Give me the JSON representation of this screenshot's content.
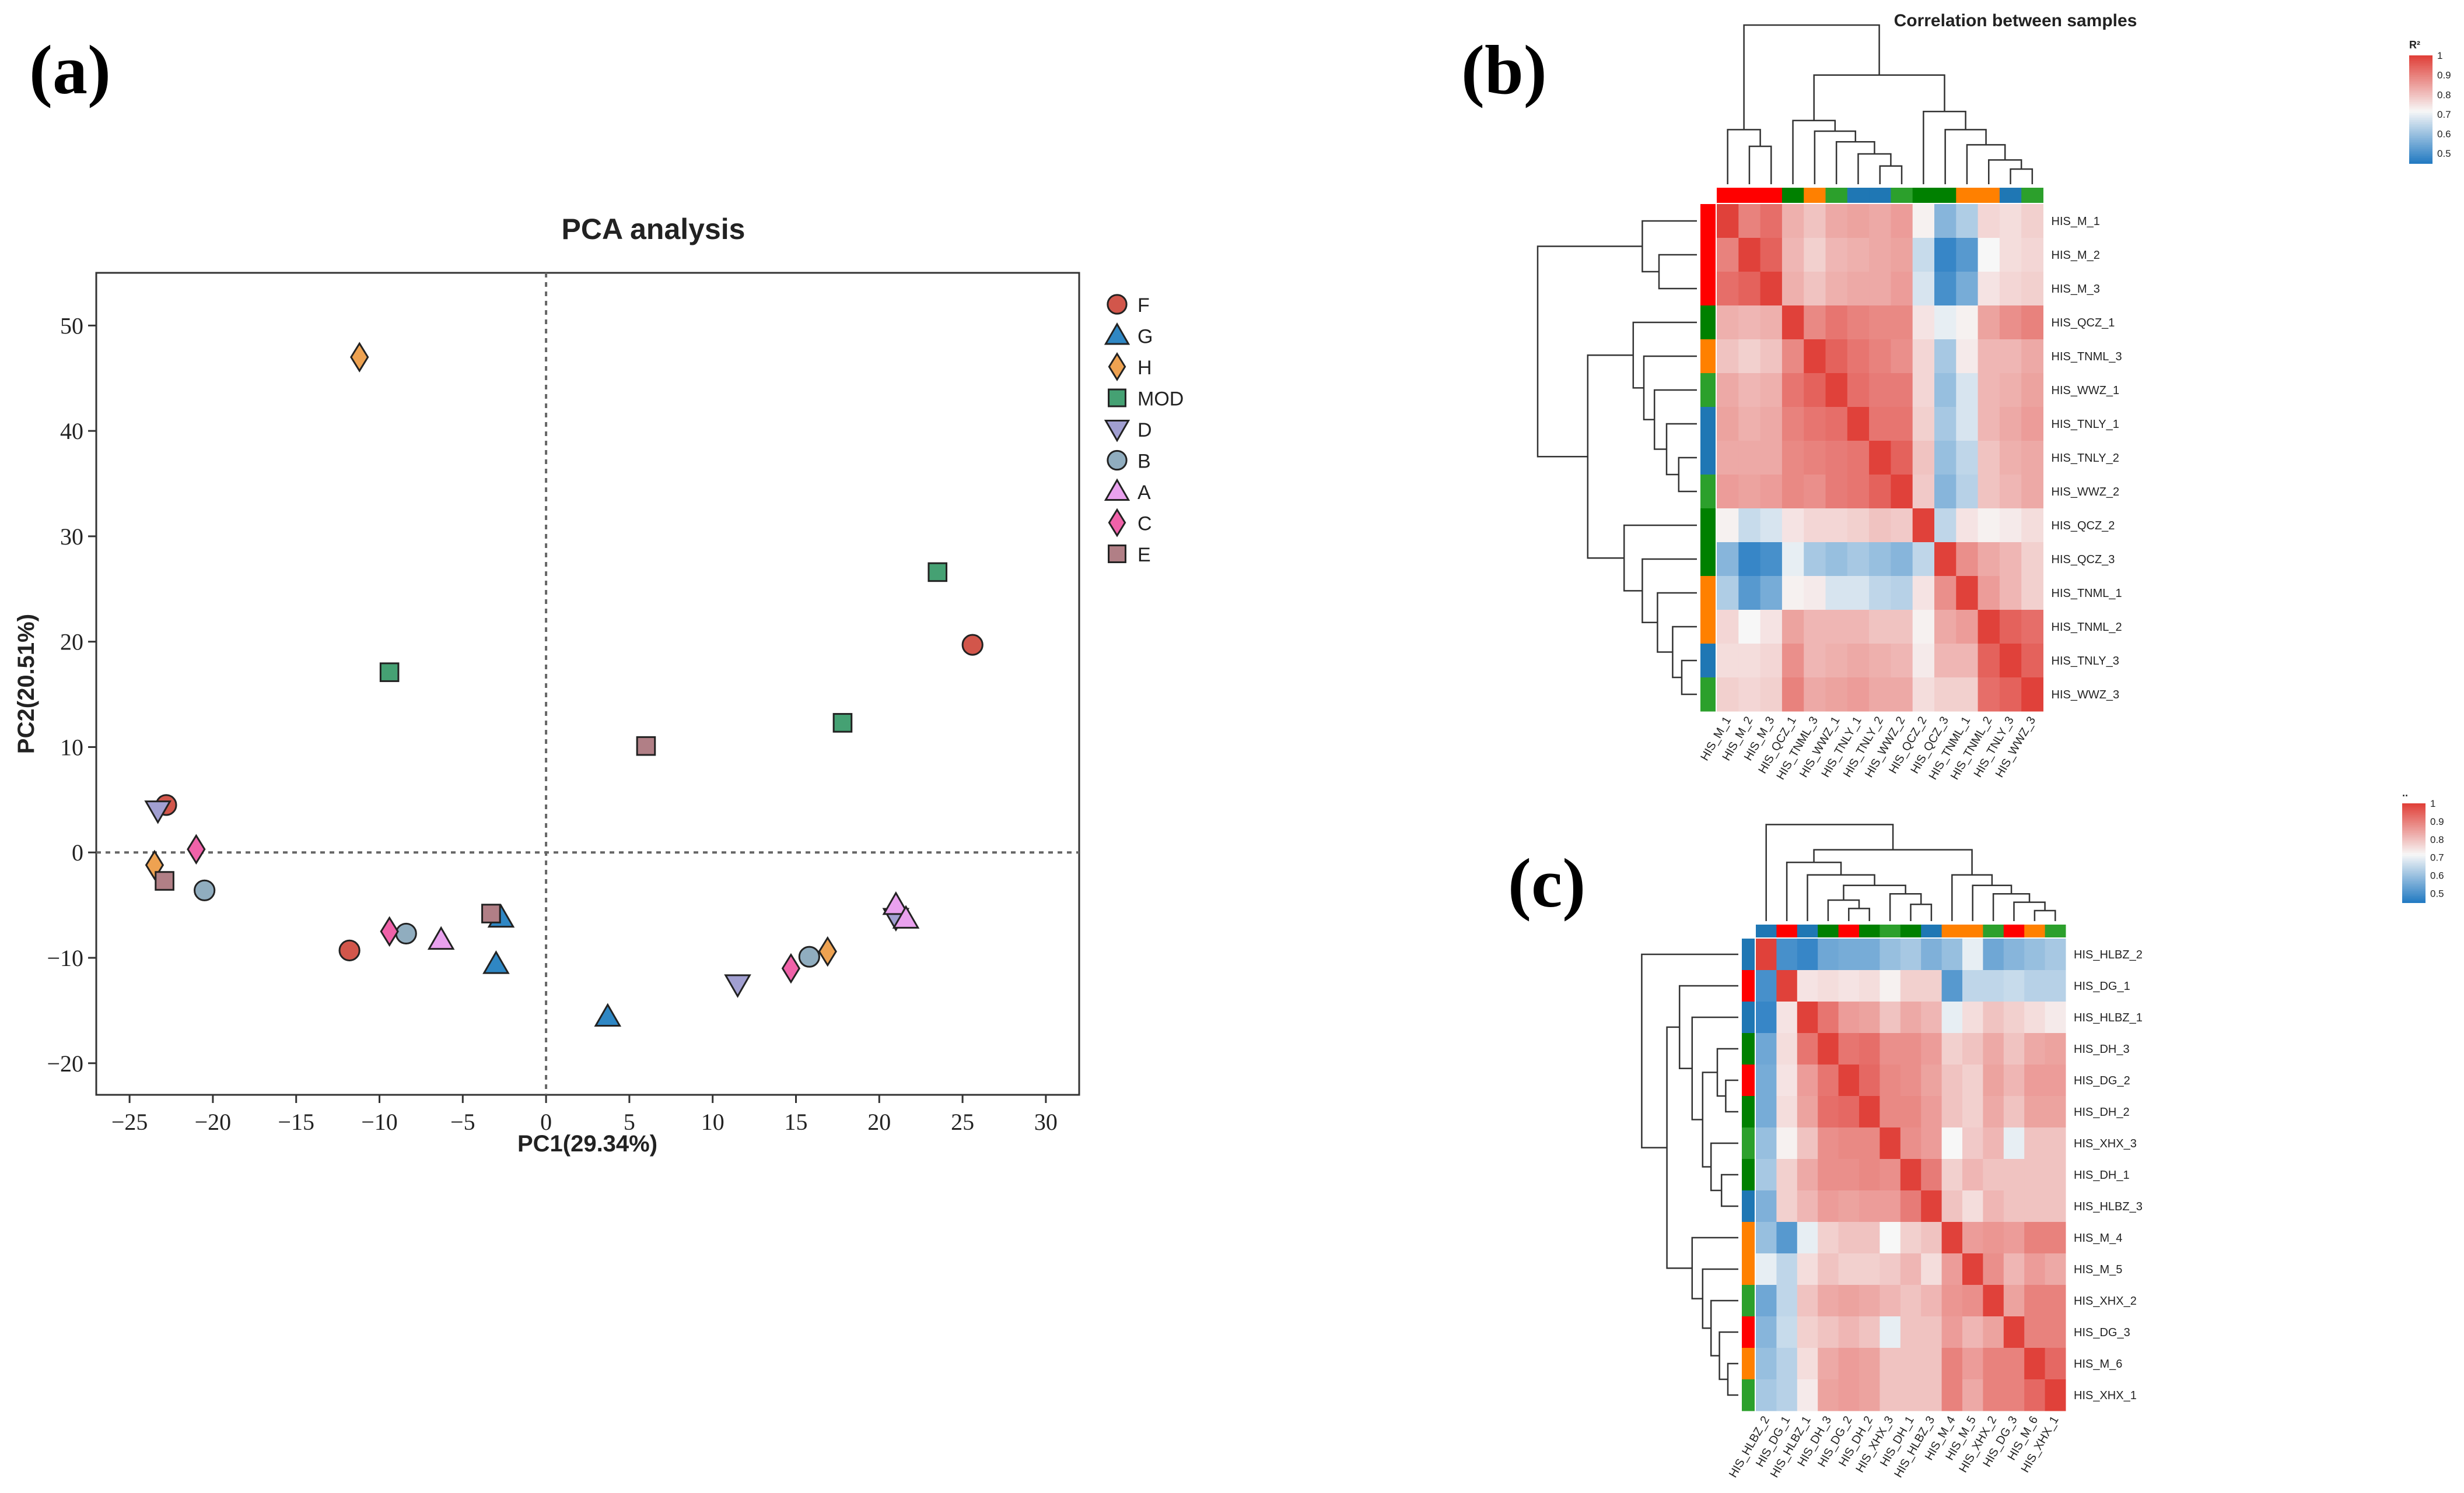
{
  "panel_labels": {
    "a": "(a)",
    "b": "(b)",
    "c": "(c)"
  },
  "colors": {
    "F": "#d2564b",
    "G": "#2f87c4",
    "H": "#eea251",
    "MOD": "#45a173",
    "D": "#a19fd1",
    "B": "#90adbf",
    "A": "#e9a1ee",
    "C": "#f062a9",
    "E": "#b17f86",
    "heat_hi": "#e0413a",
    "heat_mid": "#f7f7f7",
    "heat_lo": "#1f78c1",
    "grp_red": "#ff0000",
    "grp_green": "#008000",
    "grp_orange": "#ff8000",
    "grp_blue": "#1f77b4",
    "grp_lgreen": "#2ca02c"
  },
  "chart_data": [
    {
      "type": "scatter",
      "title": "PCA analysis",
      "xlabel": "PC1(29.34%)",
      "ylabel": "PC2(20.51%)",
      "xlim": [
        -27,
        32
      ],
      "ylim": [
        -23,
        55
      ],
      "xticks": [
        -25,
        -20,
        -15,
        -10,
        -5,
        0,
        5,
        10,
        15,
        20,
        25,
        30
      ],
      "yticks": [
        -20,
        -10,
        0,
        10,
        20,
        30,
        40,
        50
      ],
      "reference_lines": {
        "x": 0,
        "y": 0,
        "style": "dotted"
      },
      "legend_position": "outside-right",
      "series": [
        {
          "name": "F",
          "marker": "circle",
          "points": [
            [
              -22.8,
              4.5
            ],
            [
              -11.8,
              -9.3
            ],
            [
              25.6,
              19.7
            ]
          ]
        },
        {
          "name": "G",
          "marker": "triangle-up",
          "points": [
            [
              -2.7,
              -6.2
            ],
            [
              -3.0,
              -10.6
            ],
            [
              3.7,
              -15.6
            ]
          ]
        },
        {
          "name": "H",
          "marker": "diamond",
          "points": [
            [
              -11.2,
              47.0
            ],
            [
              -23.5,
              -1.2
            ],
            [
              16.9,
              -9.4
            ]
          ]
        },
        {
          "name": "MOD",
          "marker": "square",
          "points": [
            [
              -9.4,
              17.1
            ],
            [
              23.5,
              26.6
            ],
            [
              17.8,
              12.3
            ]
          ]
        },
        {
          "name": "D",
          "marker": "triangle-down",
          "points": [
            [
              -23.3,
              4.0
            ],
            [
              11.5,
              -12.5
            ],
            [
              21.0,
              -6.2
            ]
          ]
        },
        {
          "name": "B",
          "marker": "circle",
          "points": [
            [
              -20.5,
              -3.6
            ],
            [
              -8.4,
              -7.7
            ],
            [
              15.8,
              -9.9
            ]
          ]
        },
        {
          "name": "A",
          "marker": "triangle-up",
          "points": [
            [
              -6.3,
              -8.3
            ],
            [
              21.0,
              -5.0
            ],
            [
              21.6,
              -6.3
            ]
          ]
        },
        {
          "name": "C",
          "marker": "diamond",
          "points": [
            [
              -21.0,
              0.3
            ],
            [
              -9.4,
              -7.5
            ],
            [
              14.7,
              -11.0
            ]
          ]
        },
        {
          "name": "E",
          "marker": "square",
          "points": [
            [
              -22.9,
              -2.7
            ],
            [
              -3.3,
              -5.8
            ],
            [
              6.0,
              10.1
            ]
          ]
        }
      ]
    },
    {
      "type": "heatmap",
      "title": "Correlation between samples",
      "colorbar_label": "R²",
      "colorbar_ticks": [
        "1",
        "0.9",
        "0.8",
        "0.7",
        "0.6",
        "0.5"
      ],
      "value_range": [
        0.45,
        1.0
      ],
      "rows": [
        "HIS_M_1",
        "HIS_M_2",
        "HIS_M_3",
        "HIS_QCZ_1",
        "HIS_TNML_3",
        "HIS_WWZ_1",
        "HIS_TNLY_1",
        "HIS_TNLY_2",
        "HIS_WWZ_2",
        "HIS_QCZ_2",
        "HIS_QCZ_3",
        "HIS_TNML_1",
        "HIS_TNML_2",
        "HIS_TNLY_3",
        "HIS_WWZ_3"
      ],
      "columns": [
        "HIS_M_1",
        "HIS_M_2",
        "HIS_M_3",
        "HIS_QCZ_1",
        "HIS_TNML_3",
        "HIS_WWZ_1",
        "HIS_TNLY_1",
        "HIS_TNLY_2",
        "HIS_WWZ_2",
        "HIS_QCZ_2",
        "HIS_QCZ_3",
        "HIS_TNML_1",
        "HIS_TNML_2",
        "HIS_TNLY_3",
        "HIS_WWZ_3"
      ],
      "group_colors": [
        "grp_red",
        "grp_red",
        "grp_red",
        "grp_green",
        "grp_orange",
        "grp_lgreen",
        "grp_blue",
        "grp_blue",
        "grp_lgreen",
        "grp_green",
        "grp_green",
        "grp_orange",
        "grp_orange",
        "grp_blue",
        "grp_lgreen"
      ],
      "values": [
        [
          1.0,
          0.9,
          0.93,
          0.83,
          0.8,
          0.84,
          0.85,
          0.84,
          0.86,
          0.73,
          0.58,
          0.63,
          0.77,
          0.76,
          0.78
        ],
        [
          0.9,
          1.0,
          0.95,
          0.82,
          0.78,
          0.82,
          0.83,
          0.84,
          0.85,
          0.66,
          0.48,
          0.52,
          0.72,
          0.76,
          0.77
        ],
        [
          0.93,
          0.95,
          1.0,
          0.83,
          0.8,
          0.83,
          0.84,
          0.84,
          0.86,
          0.68,
          0.5,
          0.56,
          0.75,
          0.77,
          0.78
        ],
        [
          0.83,
          0.82,
          0.83,
          1.0,
          0.89,
          0.92,
          0.9,
          0.89,
          0.89,
          0.75,
          0.7,
          0.73,
          0.85,
          0.88,
          0.9
        ],
        [
          0.8,
          0.78,
          0.8,
          0.89,
          1.0,
          0.95,
          0.92,
          0.9,
          0.88,
          0.77,
          0.62,
          0.74,
          0.82,
          0.82,
          0.84
        ],
        [
          0.84,
          0.82,
          0.83,
          0.92,
          0.95,
          1.0,
          0.93,
          0.91,
          0.91,
          0.77,
          0.6,
          0.68,
          0.82,
          0.83,
          0.85
        ],
        [
          0.85,
          0.83,
          0.84,
          0.9,
          0.92,
          0.93,
          1.0,
          0.92,
          0.92,
          0.78,
          0.62,
          0.68,
          0.82,
          0.84,
          0.86
        ],
        [
          0.84,
          0.84,
          0.84,
          0.89,
          0.9,
          0.91,
          0.92,
          1.0,
          0.95,
          0.8,
          0.6,
          0.65,
          0.8,
          0.83,
          0.84
        ],
        [
          0.86,
          0.85,
          0.86,
          0.89,
          0.88,
          0.91,
          0.92,
          0.95,
          1.0,
          0.79,
          0.58,
          0.64,
          0.8,
          0.82,
          0.84
        ],
        [
          0.73,
          0.66,
          0.68,
          0.75,
          0.77,
          0.77,
          0.78,
          0.8,
          0.79,
          1.0,
          0.65,
          0.75,
          0.73,
          0.74,
          0.76
        ],
        [
          0.58,
          0.48,
          0.5,
          0.7,
          0.62,
          0.6,
          0.62,
          0.6,
          0.58,
          0.65,
          1.0,
          0.88,
          0.84,
          0.82,
          0.78
        ],
        [
          0.63,
          0.52,
          0.56,
          0.73,
          0.74,
          0.68,
          0.68,
          0.65,
          0.64,
          0.75,
          0.88,
          1.0,
          0.86,
          0.82,
          0.78
        ],
        [
          0.77,
          0.72,
          0.75,
          0.85,
          0.82,
          0.82,
          0.82,
          0.8,
          0.8,
          0.73,
          0.84,
          0.86,
          1.0,
          0.95,
          0.93
        ],
        [
          0.76,
          0.76,
          0.77,
          0.88,
          0.82,
          0.83,
          0.84,
          0.83,
          0.82,
          0.74,
          0.82,
          0.82,
          0.95,
          1.0,
          0.95
        ],
        [
          0.78,
          0.77,
          0.78,
          0.9,
          0.84,
          0.85,
          0.86,
          0.84,
          0.84,
          0.76,
          0.78,
          0.78,
          0.93,
          0.95,
          1.0
        ]
      ]
    },
    {
      "type": "heatmap",
      "title": "",
      "colorbar_label": "..",
      "colorbar_ticks": [
        "1",
        "0.9",
        "0.8",
        "0.7",
        "0.6",
        "0.5"
      ],
      "value_range": [
        0.45,
        1.0
      ],
      "rows": [
        "HIS_HLBZ_2",
        "HIS_DG_1",
        "HIS_HLBZ_1",
        "HIS_DH_3",
        "HIS_DG_2",
        "HIS_DH_2",
        "HIS_XHX_3",
        "HIS_DH_1",
        "HIS_HLBZ_3",
        "HIS_M_4",
        "HIS_M_5",
        "HIS_XHX_2",
        "HIS_DG_3",
        "HIS_M_6",
        "HIS_XHX_1"
      ],
      "columns": [
        "HIS_HLBZ_2",
        "HIS_DG_1",
        "HIS_HLBZ_1",
        "HIS_DH_3",
        "HIS_DG_2",
        "HIS_DH_2",
        "HIS_XHX_3",
        "HIS_DH_1",
        "HIS_HLBZ_3",
        "HIS_M_4",
        "HIS_M_5",
        "HIS_XHX_2",
        "HIS_DG_3",
        "HIS_M_6",
        "HIS_XHX_1"
      ],
      "group_colors": [
        "grp_blue",
        "grp_red",
        "grp_blue",
        "grp_green",
        "grp_red",
        "grp_green",
        "grp_lgreen",
        "grp_green",
        "grp_blue",
        "grp_orange",
        "grp_orange",
        "grp_lgreen",
        "grp_red",
        "grp_orange",
        "grp_lgreen"
      ],
      "values": [
        [
          1.0,
          0.5,
          0.48,
          0.55,
          0.56,
          0.56,
          0.6,
          0.62,
          0.57,
          0.6,
          0.7,
          0.55,
          0.58,
          0.6,
          0.62
        ],
        [
          0.5,
          1.0,
          0.75,
          0.76,
          0.75,
          0.76,
          0.73,
          0.78,
          0.78,
          0.52,
          0.65,
          0.65,
          0.66,
          0.64,
          0.64
        ],
        [
          0.48,
          0.75,
          1.0,
          0.92,
          0.86,
          0.85,
          0.8,
          0.84,
          0.82,
          0.7,
          0.76,
          0.8,
          0.78,
          0.76,
          0.74
        ],
        [
          0.55,
          0.76,
          0.92,
          1.0,
          0.92,
          0.93,
          0.88,
          0.88,
          0.86,
          0.78,
          0.8,
          0.84,
          0.8,
          0.84,
          0.85
        ],
        [
          0.56,
          0.75,
          0.86,
          0.92,
          1.0,
          0.94,
          0.89,
          0.88,
          0.85,
          0.8,
          0.78,
          0.85,
          0.82,
          0.86,
          0.86
        ],
        [
          0.56,
          0.76,
          0.85,
          0.93,
          0.94,
          1.0,
          0.89,
          0.89,
          0.86,
          0.8,
          0.78,
          0.84,
          0.8,
          0.85,
          0.85
        ],
        [
          0.6,
          0.73,
          0.8,
          0.88,
          0.89,
          0.89,
          1.0,
          0.88,
          0.86,
          0.72,
          0.79,
          0.82,
          0.7,
          0.8,
          0.8
        ],
        [
          0.62,
          0.78,
          0.84,
          0.88,
          0.88,
          0.89,
          0.88,
          1.0,
          0.91,
          0.78,
          0.82,
          0.8,
          0.8,
          0.8,
          0.8
        ],
        [
          0.57,
          0.78,
          0.82,
          0.86,
          0.85,
          0.86,
          0.86,
          0.91,
          1.0,
          0.8,
          0.76,
          0.82,
          0.8,
          0.8,
          0.8
        ],
        [
          0.6,
          0.52,
          0.7,
          0.78,
          0.8,
          0.8,
          0.72,
          0.78,
          0.8,
          1.0,
          0.86,
          0.87,
          0.86,
          0.9,
          0.9
        ],
        [
          0.7,
          0.65,
          0.76,
          0.8,
          0.78,
          0.78,
          0.79,
          0.82,
          0.76,
          0.86,
          1.0,
          0.88,
          0.82,
          0.86,
          0.84
        ],
        [
          0.55,
          0.65,
          0.8,
          0.84,
          0.85,
          0.84,
          0.82,
          0.8,
          0.82,
          0.87,
          0.88,
          1.0,
          0.85,
          0.9,
          0.9
        ],
        [
          0.58,
          0.66,
          0.78,
          0.8,
          0.82,
          0.8,
          0.7,
          0.8,
          0.8,
          0.86,
          0.82,
          0.85,
          1.0,
          0.9,
          0.9
        ],
        [
          0.6,
          0.64,
          0.76,
          0.84,
          0.86,
          0.85,
          0.8,
          0.8,
          0.8,
          0.9,
          0.86,
          0.9,
          0.9,
          1.0,
          0.94
        ],
        [
          0.62,
          0.64,
          0.74,
          0.85,
          0.86,
          0.85,
          0.8,
          0.8,
          0.8,
          0.9,
          0.84,
          0.9,
          0.9,
          0.94,
          1.0
        ]
      ]
    }
  ]
}
